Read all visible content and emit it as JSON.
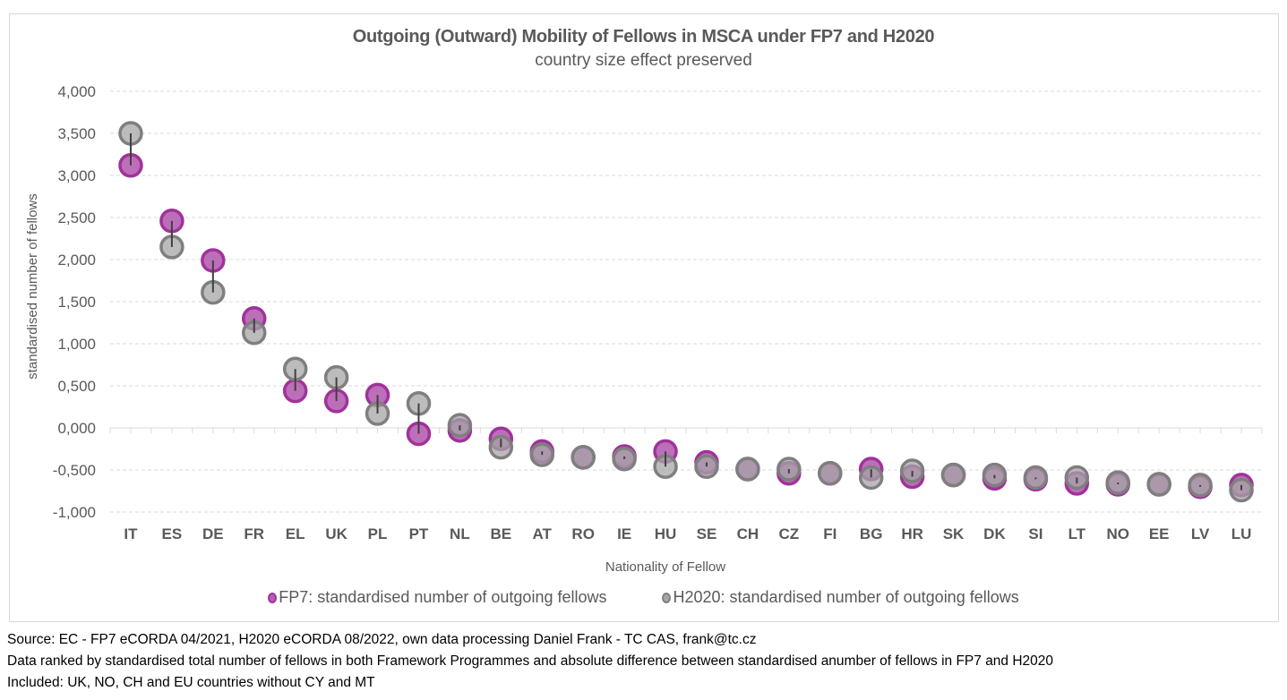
{
  "chart_data": {
    "type": "scatter",
    "title": "Outgoing (Outward) Mobility of Fellows in MSCA under FP7 and H2020",
    "subtitle": "country size effect preserved",
    "xlabel": "Nationality of Fellow",
    "ylabel": "standardised number of fellows",
    "ylim": [
      -1.0,
      4.0
    ],
    "yticks": [
      4.0,
      3.5,
      3.0,
      2.5,
      2.0,
      1.5,
      1.0,
      0.5,
      0.0,
      -0.5,
      -1.0
    ],
    "ytick_labels": [
      "4,000",
      "3,500",
      "3,000",
      "2,500",
      "2,000",
      "1,500",
      "1,000",
      "0,500",
      "0,000",
      "-0,500",
      "-1,000"
    ],
    "grid": true,
    "legend_position": "bottom",
    "categories": [
      "IT",
      "ES",
      "DE",
      "FR",
      "EL",
      "UK",
      "PL",
      "PT",
      "NL",
      "BE",
      "AT",
      "RO",
      "IE",
      "HU",
      "SE",
      "CH",
      "CZ",
      "FI",
      "BG",
      "HR",
      "SK",
      "DK",
      "SI",
      "LT",
      "NO",
      "EE",
      "LV",
      "LU"
    ],
    "series": [
      {
        "name": "FP7: standardised number of outgoing fellows",
        "color": "#a0329a",
        "fill": "#b55fb0",
        "values": [
          3.12,
          2.46,
          1.99,
          1.3,
          0.44,
          0.32,
          0.39,
          -0.07,
          -0.03,
          -0.13,
          -0.28,
          -0.35,
          -0.34,
          -0.28,
          -0.41,
          -0.49,
          -0.54,
          -0.54,
          -0.49,
          -0.58,
          -0.56,
          -0.6,
          -0.61,
          -0.66,
          -0.67,
          -0.67,
          -0.7,
          -0.68
        ]
      },
      {
        "name": "H2020: standardised number of outgoing fellows",
        "color": "#7f7f7f",
        "fill": "#a6a6a6",
        "values": [
          3.5,
          2.15,
          1.61,
          1.13,
          0.7,
          0.6,
          0.17,
          0.29,
          0.03,
          -0.23,
          -0.32,
          -0.35,
          -0.37,
          -0.46,
          -0.46,
          -0.49,
          -0.49,
          -0.54,
          -0.59,
          -0.51,
          -0.56,
          -0.56,
          -0.59,
          -0.59,
          -0.65,
          -0.67,
          -0.68,
          -0.74
        ]
      }
    ]
  },
  "footnotes": {
    "source": "Source: EC -  FP7 eCORDA 04/2021, H2020 eCORDA 08/2022, own data processing Daniel Frank - TC CAS, frank@tc.cz",
    "ranking": "Data ranked by standardised total number of fellows in both Framework Programmes and absolute difference between standardised anumber of fellows in FP7 and H2020",
    "included": "Included: UK, NO, CH and EU countries without CY and MT"
  }
}
